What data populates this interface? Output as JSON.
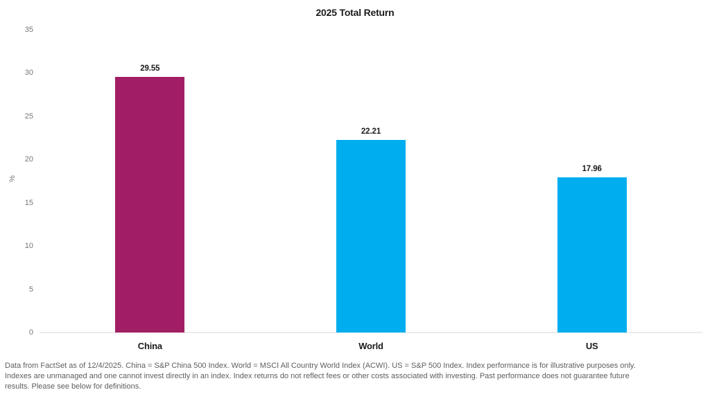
{
  "chart_data": {
    "type": "bar",
    "title": "2025 Total Return",
    "categories": [
      "China",
      "World",
      "US"
    ],
    "values": [
      29.55,
      22.21,
      17.96
    ],
    "value_labels": [
      "29.55",
      "22.21",
      "17.96"
    ],
    "bar_colors": [
      "#A21E64",
      "#00AEEF",
      "#00AEEF"
    ],
    "xlabel": "",
    "ylabel": "%",
    "ylim": [
      0,
      35
    ],
    "yticks": [
      0,
      5,
      10,
      15,
      20,
      25,
      30,
      35
    ],
    "grid": "off",
    "legend": "none",
    "data_labels": "above-bars"
  },
  "colors": {
    "magenta": "#A21E64",
    "blue": "#00AEEF",
    "axis_line": "#ebebeb",
    "tick_text": "#757575",
    "label_text": "#1b1b1b",
    "footnote_text": "#5d5d5d"
  },
  "footnote": {
    "lines": [
      "Data from FactSet as of 12/4/2025. China = S&P China 500 Index. World = MSCI All Country World Index (ACWI). US = S&P 500 Index. Index performance is for illustrative purposes only.",
      "Indexes are unmanaged and one cannot invest directly in an index. Index returns do not reflect fees or other costs associated with investing. Past performance does not guarantee future",
      "results. Please see below for definitions."
    ]
  }
}
